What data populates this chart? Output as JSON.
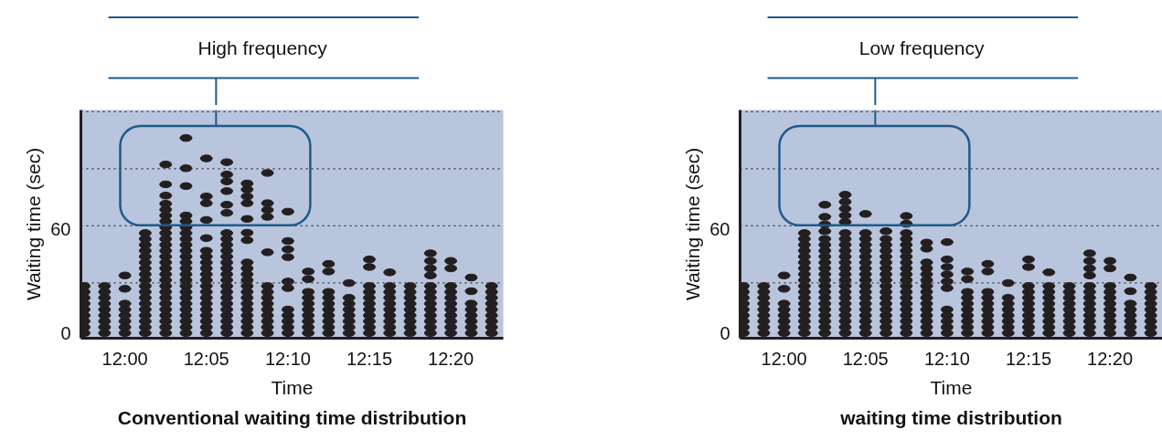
{
  "chart_data": [
    {
      "type": "scatter",
      "title": "Conventional waiting time distribution",
      "xlabel": "Time",
      "ylabel": "Waiting time (sec)",
      "annotations": [
        "High frequency"
      ],
      "xlim": [
        11.955,
        12.387
      ],
      "ylim": [
        -3,
        129
      ],
      "xticks": [
        {
          "value": 12.0,
          "label": "12:00"
        },
        {
          "value": 12.0833,
          "label": "12:05"
        },
        {
          "value": 12.1667,
          "label": "12:10"
        },
        {
          "value": 12.25,
          "label": "12:15"
        },
        {
          "value": 12.3333,
          "label": "12:20"
        }
      ],
      "yticks": [
        0,
        60
      ],
      "ref_lines": [
        {
          "axis": "y",
          "value": 29,
          "color": "#333333",
          "line_style": "dotted"
        },
        {
          "axis": "y",
          "value": 62,
          "color": "#333333",
          "line_style": "dotted"
        },
        {
          "axis": "y",
          "value": 95,
          "color": "#333333",
          "line_style": "dotted"
        },
        {
          "axis": "y",
          "value": 128,
          "color": "#333333",
          "line_style": "dotted"
        }
      ],
      "series": [
        {
          "color": "#231f20",
          "x": [
            11.9583,
            11.9583,
            11.9583,
            11.9583,
            11.9583,
            11.9583,
            11.9583,
            11.9583,
            11.9583
          ],
          "values": [
            0,
            3.4,
            6.8,
            10.2,
            13.6,
            17,
            20.4,
            23.8,
            27.2
          ]
        },
        {
          "color": "#231f20",
          "x": [
            11.9792,
            11.9792,
            11.9792,
            11.9792,
            11.9792,
            11.9792,
            11.9792,
            11.9792,
            11.9792
          ],
          "values": [
            0,
            3.4,
            6.8,
            10.2,
            13.6,
            17,
            20.4,
            23.8,
            27.2
          ]
        },
        {
          "color": "#231f20",
          "x": [
            12.0,
            12.0,
            12.0,
            12.0,
            12.0,
            12.0,
            12.0,
            12.0
          ],
          "values": [
            0,
            3.4,
            6.8,
            10.2,
            13.6,
            17,
            25.6,
            33.3
          ]
        },
        {
          "color": "#231f20",
          "x": [
            12.0208,
            12.0208,
            12.0208,
            12.0208,
            12.0208,
            12.0208,
            12.0208,
            12.0208,
            12.0208,
            12.0208,
            12.0208,
            12.0208,
            12.0208,
            12.0208,
            12.0208,
            12.0208,
            12.0208,
            12.0208
          ],
          "values": [
            0,
            3.4,
            6.8,
            10.2,
            13.6,
            17,
            20.4,
            23.8,
            27.2,
            30.6,
            34,
            37.4,
            40.8,
            44.2,
            47.6,
            51,
            54.4,
            57.8
          ]
        },
        {
          "color": "#231f20",
          "x": [
            12.0417,
            12.0417,
            12.0417,
            12.0417,
            12.0417,
            12.0417,
            12.0417,
            12.0417,
            12.0417,
            12.0417,
            12.0417,
            12.0417,
            12.0417,
            12.0417,
            12.0417,
            12.0417,
            12.0417,
            12.0417,
            12.0417,
            12.0417,
            12.0417,
            12.0417,
            12.0417,
            12.0417,
            12.0417,
            12.0417
          ],
          "values": [
            0,
            3.4,
            6.8,
            10.2,
            13.6,
            17,
            20.4,
            23.8,
            27.2,
            30.6,
            34,
            37.4,
            40.8,
            44.2,
            47.6,
            51,
            54.4,
            57.8,
            61.2,
            64.6,
            68,
            71.4,
            74.8,
            79.5,
            86,
            97.5
          ]
        },
        {
          "color": "#231f20",
          "x": [
            12.0625,
            12.0625,
            12.0625,
            12.0625,
            12.0625,
            12.0625,
            12.0625,
            12.0625,
            12.0625,
            12.0625,
            12.0625,
            12.0625,
            12.0625,
            12.0625,
            12.0625,
            12.0625,
            12.0625,
            12.0625,
            12.0625,
            12.0625,
            12.0625,
            12.0625,
            12.0625,
            12.0625
          ],
          "values": [
            0,
            3.4,
            6.8,
            10.2,
            13.6,
            17,
            20.4,
            23.8,
            27.2,
            30.6,
            34,
            37.4,
            40.8,
            44.2,
            47.6,
            51,
            54.4,
            57.8,
            61.2,
            64.6,
            68,
            85,
            95.3,
            112.8
          ]
        },
        {
          "color": "#231f20",
          "x": [
            12.0833,
            12.0833,
            12.0833,
            12.0833,
            12.0833,
            12.0833,
            12.0833,
            12.0833,
            12.0833,
            12.0833,
            12.0833,
            12.0833,
            12.0833,
            12.0833,
            12.0833,
            12.0833,
            12.0833,
            12.0833,
            12.0833,
            12.0833
          ],
          "values": [
            0,
            3.4,
            6.8,
            10.2,
            13.6,
            17,
            20.4,
            23.8,
            27.2,
            30.6,
            34,
            37.4,
            40.8,
            44.2,
            47.6,
            54.9,
            65.4,
            75.1,
            79,
            101
          ]
        },
        {
          "color": "#231f20",
          "x": [
            12.1042,
            12.1042,
            12.1042,
            12.1042,
            12.1042,
            12.1042,
            12.1042,
            12.1042,
            12.1042,
            12.1042,
            12.1042,
            12.1042,
            12.1042,
            12.1042,
            12.1042,
            12.1042,
            12.1042,
            12.1042,
            12.1042,
            12.1042,
            12.1042,
            12.1042,
            12.1042,
            12.1042
          ],
          "values": [
            0,
            3.4,
            6.8,
            10.2,
            13.6,
            17,
            20.4,
            23.8,
            27.2,
            30.6,
            34,
            37.4,
            40.8,
            44.2,
            47.6,
            51,
            54.4,
            57.8,
            69.5,
            74.2,
            82.1,
            87.7,
            91.7,
            98.8
          ]
        },
        {
          "color": "#231f20",
          "x": [
            12.125,
            12.125,
            12.125,
            12.125,
            12.125,
            12.125,
            12.125,
            12.125,
            12.125,
            12.125,
            12.125,
            12.125,
            12.125,
            12.125,
            12.125,
            12.125,
            12.125,
            12.125,
            12.125,
            12.125
          ],
          "values": [
            0,
            3.4,
            6.8,
            10.2,
            13.6,
            17,
            20.4,
            23.8,
            27.2,
            30.6,
            34,
            37.4,
            40.8,
            53.7,
            58,
            66,
            75.1,
            79,
            83,
            86.5
          ]
        },
        {
          "color": "#231f20",
          "x": [
            12.1458,
            12.1458,
            12.1458,
            12.1458,
            12.1458,
            12.1458,
            12.1458,
            12.1458,
            12.1458,
            12.1458,
            12.1458,
            12.1458,
            12.1458,
            12.1458
          ],
          "values": [
            0,
            3.4,
            6.8,
            10.2,
            13.6,
            17,
            20.4,
            23.8,
            27.2,
            46.7,
            67.2,
            71.2,
            75.1,
            92.6
          ]
        },
        {
          "color": "#231f20",
          "x": [
            12.1667,
            12.1667,
            12.1667,
            12.1667,
            12.1667,
            12.1667,
            12.1667,
            12.1667,
            12.1667,
            12.1667,
            12.1667
          ],
          "values": [
            0,
            3.4,
            6.8,
            10.2,
            13.6,
            26,
            29.8,
            43.9,
            48.4,
            53.2,
            70.2
          ]
        },
        {
          "color": "#231f20",
          "x": [
            12.1875,
            12.1875,
            12.1875,
            12.1875,
            12.1875,
            12.1875,
            12.1875,
            12.1875,
            12.1875,
            12.1875
          ],
          "values": [
            0,
            3.4,
            6.8,
            10.2,
            13.6,
            17,
            20.4,
            23.8,
            31.2,
            35.6
          ]
        },
        {
          "color": "#231f20",
          "x": [
            12.2083,
            12.2083,
            12.2083,
            12.2083,
            12.2083,
            12.2083,
            12.2083,
            12.2083,
            12.2083,
            12.2083
          ],
          "values": [
            0,
            3.4,
            6.8,
            10.2,
            13.6,
            17,
            20.4,
            23.8,
            35.6,
            40
          ]
        },
        {
          "color": "#231f20",
          "x": [
            12.2292,
            12.2292,
            12.2292,
            12.2292,
            12.2292,
            12.2292,
            12.2292,
            12.2292
          ],
          "values": [
            0,
            3.4,
            6.8,
            10.2,
            13.6,
            17,
            20.4,
            28.9
          ]
        },
        {
          "color": "#231f20",
          "x": [
            12.25,
            12.25,
            12.25,
            12.25,
            12.25,
            12.25,
            12.25,
            12.25,
            12.25,
            12.25,
            12.25
          ],
          "values": [
            0,
            3.4,
            6.8,
            10.2,
            13.6,
            17,
            20.4,
            23.8,
            27.2,
            38.2,
            42.6
          ]
        },
        {
          "color": "#231f20",
          "x": [
            12.2708,
            12.2708,
            12.2708,
            12.2708,
            12.2708,
            12.2708,
            12.2708,
            12.2708,
            12.2708,
            12.2708
          ],
          "values": [
            0,
            3.4,
            6.8,
            10.2,
            13.6,
            17,
            20.4,
            23.8,
            27.2,
            35.1
          ]
        },
        {
          "color": "#231f20",
          "x": [
            12.2917,
            12.2917,
            12.2917,
            12.2917,
            12.2917,
            12.2917,
            12.2917,
            12.2917,
            12.2917
          ],
          "values": [
            0,
            3.4,
            6.8,
            10.2,
            13.6,
            17,
            20.4,
            23.8,
            27.2
          ]
        },
        {
          "color": "#231f20",
          "x": [
            12.3125,
            12.3125,
            12.3125,
            12.3125,
            12.3125,
            12.3125,
            12.3125,
            12.3125,
            12.3125,
            12.3125,
            12.3125,
            12.3125,
            12.3125
          ],
          "values": [
            0,
            3.4,
            6.8,
            10.2,
            13.6,
            17,
            20.4,
            23.8,
            27.2,
            33.3,
            37.4,
            41.7,
            46.1
          ]
        },
        {
          "color": "#231f20",
          "x": [
            12.3333,
            12.3333,
            12.3333,
            12.3333,
            12.3333,
            12.3333,
            12.3333,
            12.3333,
            12.3333,
            12.3333,
            12.3333
          ],
          "values": [
            0,
            3.4,
            6.8,
            10.2,
            13.6,
            17,
            20.4,
            23.8,
            27.2,
            37.4,
            41.7
          ]
        },
        {
          "color": "#231f20",
          "x": [
            12.3542,
            12.3542,
            12.3542,
            12.3542,
            12.3542,
            12.3542,
            12.3542,
            12.3542
          ],
          "values": [
            0,
            3.4,
            6.8,
            10.2,
            13.6,
            17,
            24.2,
            32.1
          ]
        },
        {
          "color": "#231f20",
          "x": [
            12.375,
            12.375,
            12.375,
            12.375,
            12.375,
            12.375,
            12.375,
            12.375,
            12.375
          ],
          "values": [
            0,
            3.4,
            6.8,
            10.2,
            13.6,
            17,
            20.4,
            23.8,
            27.2
          ]
        }
      ]
    },
    {
      "type": "scatter",
      "title": "waiting time distribution",
      "xlabel": "Time",
      "ylabel": "Waiting time (sec)",
      "annotations": [
        "Low frequency"
      ],
      "xlim": [
        11.955,
        12.387
      ],
      "ylim": [
        -3,
        129
      ],
      "xticks": [
        {
          "value": 12.0,
          "label": "12:00"
        },
        {
          "value": 12.0833,
          "label": "12:05"
        },
        {
          "value": 12.1667,
          "label": "12:10"
        },
        {
          "value": 12.25,
          "label": "12:15"
        },
        {
          "value": 12.3333,
          "label": "12:20"
        }
      ],
      "yticks": [
        0,
        60
      ],
      "ref_lines": [
        {
          "axis": "y",
          "value": 29,
          "color": "#333333",
          "line_style": "dotted"
        },
        {
          "axis": "y",
          "value": 62,
          "color": "#333333",
          "line_style": "dotted"
        },
        {
          "axis": "y",
          "value": 95,
          "color": "#333333",
          "line_style": "dotted"
        },
        {
          "axis": "y",
          "value": 128,
          "color": "#333333",
          "line_style": "dotted"
        }
      ],
      "series": [
        {
          "color": "#231f20",
          "x": [
            11.9583,
            11.9583,
            11.9583,
            11.9583,
            11.9583,
            11.9583,
            11.9583,
            11.9583,
            11.9583
          ],
          "values": [
            0,
            3.4,
            6.8,
            10.2,
            13.6,
            17,
            20.4,
            23.8,
            27.2
          ]
        },
        {
          "color": "#231f20",
          "x": [
            11.9792,
            11.9792,
            11.9792,
            11.9792,
            11.9792,
            11.9792,
            11.9792,
            11.9792,
            11.9792
          ],
          "values": [
            0,
            3.4,
            6.8,
            10.2,
            13.6,
            17,
            20.4,
            23.8,
            27.2
          ]
        },
        {
          "color": "#231f20",
          "x": [
            12.0,
            12.0,
            12.0,
            12.0,
            12.0,
            12.0,
            12.0,
            12.0
          ],
          "values": [
            0,
            3.4,
            6.8,
            10.2,
            13.6,
            17,
            25.6,
            33.3
          ]
        },
        {
          "color": "#231f20",
          "x": [
            12.0208,
            12.0208,
            12.0208,
            12.0208,
            12.0208,
            12.0208,
            12.0208,
            12.0208,
            12.0208,
            12.0208,
            12.0208,
            12.0208,
            12.0208,
            12.0208,
            12.0208,
            12.0208,
            12.0208,
            12.0208
          ],
          "values": [
            0,
            3.4,
            6.8,
            10.2,
            13.6,
            17,
            20.4,
            23.8,
            27.2,
            30.6,
            34,
            37.4,
            40.8,
            44.2,
            47.6,
            51,
            54.4,
            57.8
          ]
        },
        {
          "color": "#231f20",
          "x": [
            12.0417,
            12.0417,
            12.0417,
            12.0417,
            12.0417,
            12.0417,
            12.0417,
            12.0417,
            12.0417,
            12.0417,
            12.0417,
            12.0417,
            12.0417,
            12.0417,
            12.0417,
            12.0417,
            12.0417,
            12.0417,
            12.0417,
            12.0417,
            12.0417
          ],
          "values": [
            0,
            3.4,
            6.8,
            10.2,
            13.6,
            17,
            20.4,
            23.8,
            27.2,
            30.6,
            34,
            37.4,
            40.8,
            44.2,
            47.6,
            51,
            54.4,
            58.9,
            62.8,
            67.2,
            74.2
          ]
        },
        {
          "color": "#231f20",
          "x": [
            12.0625,
            12.0625,
            12.0625,
            12.0625,
            12.0625,
            12.0625,
            12.0625,
            12.0625,
            12.0625,
            12.0625,
            12.0625,
            12.0625,
            12.0625,
            12.0625,
            12.0625,
            12.0625,
            12.0625,
            12.0625,
            12.0625,
            12.0625,
            12.0625,
            12.0625,
            12.0625
          ],
          "values": [
            0,
            3.4,
            6.8,
            10.2,
            13.6,
            17,
            20.4,
            23.8,
            27.2,
            30.6,
            34,
            37.4,
            40.8,
            44.2,
            47.6,
            51,
            54.4,
            57.8,
            64.2,
            68,
            71.9,
            75.9,
            80
          ]
        },
        {
          "color": "#231f20",
          "x": [
            12.0833,
            12.0833,
            12.0833,
            12.0833,
            12.0833,
            12.0833,
            12.0833,
            12.0833,
            12.0833,
            12.0833,
            12.0833,
            12.0833,
            12.0833,
            12.0833,
            12.0833,
            12.0833,
            12.0833,
            12.0833,
            12.0833
          ],
          "values": [
            0,
            3.4,
            6.8,
            10.2,
            13.6,
            17,
            20.4,
            23.8,
            27.2,
            30.6,
            34,
            37.4,
            40.8,
            44.2,
            47.6,
            51,
            54.4,
            57.8,
            68.9
          ]
        },
        {
          "color": "#231f20",
          "x": [
            12.1042,
            12.1042,
            12.1042,
            12.1042,
            12.1042,
            12.1042,
            12.1042,
            12.1042,
            12.1042,
            12.1042,
            12.1042,
            12.1042,
            12.1042,
            12.1042,
            12.1042,
            12.1042,
            12.1042,
            12.1042
          ],
          "values": [
            0,
            3.4,
            6.8,
            10.2,
            13.6,
            17,
            20.4,
            23.8,
            27.2,
            30.6,
            34,
            37.4,
            40.8,
            44.2,
            47.6,
            51,
            54.4,
            58.9
          ]
        },
        {
          "color": "#231f20",
          "x": [
            12.125,
            12.125,
            12.125,
            12.125,
            12.125,
            12.125,
            12.125,
            12.125,
            12.125,
            12.125,
            12.125,
            12.125,
            12.125,
            12.125,
            12.125,
            12.125,
            12.125,
            12.125,
            12.125,
            12.125
          ],
          "values": [
            0,
            3.4,
            6.8,
            10.2,
            13.6,
            17,
            20.4,
            23.8,
            27.2,
            30.6,
            34,
            37.4,
            40.8,
            44.2,
            47.6,
            51,
            54.4,
            57.8,
            63.2,
            67.7
          ]
        },
        {
          "color": "#231f20",
          "x": [
            12.1458,
            12.1458,
            12.1458,
            12.1458,
            12.1458,
            12.1458,
            12.1458,
            12.1458,
            12.1458,
            12.1458,
            12.1458,
            12.1458,
            12.1458,
            12.1458,
            12.1458
          ],
          "values": [
            0,
            3.4,
            6.8,
            10.2,
            13.6,
            17,
            20.4,
            23.8,
            27.2,
            30.6,
            34,
            37.4,
            40.8,
            48.8,
            52.3
          ]
        },
        {
          "color": "#231f20",
          "x": [
            12.1667,
            12.1667,
            12.1667,
            12.1667,
            12.1667,
            12.1667,
            12.1667,
            12.1667,
            12.1667,
            12.1667,
            12.1667
          ],
          "values": [
            0,
            3.4,
            6.8,
            10.2,
            13.6,
            26,
            29.8,
            33.9,
            38.2,
            42.6,
            52.6
          ]
        },
        {
          "color": "#231f20",
          "x": [
            12.1875,
            12.1875,
            12.1875,
            12.1875,
            12.1875,
            12.1875,
            12.1875,
            12.1875,
            12.1875,
            12.1875
          ],
          "values": [
            0,
            3.4,
            6.8,
            10.2,
            13.6,
            17,
            20.4,
            23.8,
            31.2,
            35.6
          ]
        },
        {
          "color": "#231f20",
          "x": [
            12.2083,
            12.2083,
            12.2083,
            12.2083,
            12.2083,
            12.2083,
            12.2083,
            12.2083,
            12.2083,
            12.2083
          ],
          "values": [
            0,
            3.4,
            6.8,
            10.2,
            13.6,
            17,
            20.4,
            23.8,
            35.6,
            40
          ]
        },
        {
          "color": "#231f20",
          "x": [
            12.2292,
            12.2292,
            12.2292,
            12.2292,
            12.2292,
            12.2292,
            12.2292,
            12.2292
          ],
          "values": [
            0,
            3.4,
            6.8,
            10.2,
            13.6,
            17,
            20.4,
            28.9
          ]
        },
        {
          "color": "#231f20",
          "x": [
            12.25,
            12.25,
            12.25,
            12.25,
            12.25,
            12.25,
            12.25,
            12.25,
            12.25,
            12.25,
            12.25
          ],
          "values": [
            0,
            3.4,
            6.8,
            10.2,
            13.6,
            17,
            20.4,
            23.8,
            27.2,
            38.2,
            42.6
          ]
        },
        {
          "color": "#231f20",
          "x": [
            12.2708,
            12.2708,
            12.2708,
            12.2708,
            12.2708,
            12.2708,
            12.2708,
            12.2708,
            12.2708,
            12.2708
          ],
          "values": [
            0,
            3.4,
            6.8,
            10.2,
            13.6,
            17,
            20.4,
            23.8,
            27.2,
            35.1
          ]
        },
        {
          "color": "#231f20",
          "x": [
            12.2917,
            12.2917,
            12.2917,
            12.2917,
            12.2917,
            12.2917,
            12.2917,
            12.2917,
            12.2917
          ],
          "values": [
            0,
            3.4,
            6.8,
            10.2,
            13.6,
            17,
            20.4,
            23.8,
            27.2
          ]
        },
        {
          "color": "#231f20",
          "x": [
            12.3125,
            12.3125,
            12.3125,
            12.3125,
            12.3125,
            12.3125,
            12.3125,
            12.3125,
            12.3125,
            12.3125,
            12.3125,
            12.3125,
            12.3125
          ],
          "values": [
            0,
            3.4,
            6.8,
            10.2,
            13.6,
            17,
            20.4,
            23.8,
            27.2,
            33.3,
            37.4,
            41.7,
            46.1
          ]
        },
        {
          "color": "#231f20",
          "x": [
            12.3333,
            12.3333,
            12.3333,
            12.3333,
            12.3333,
            12.3333,
            12.3333,
            12.3333,
            12.3333,
            12.3333,
            12.3333
          ],
          "values": [
            0,
            3.4,
            6.8,
            10.2,
            13.6,
            17,
            20.4,
            23.8,
            27.2,
            37.4,
            41.7
          ]
        },
        {
          "color": "#231f20",
          "x": [
            12.3542,
            12.3542,
            12.3542,
            12.3542,
            12.3542,
            12.3542,
            12.3542,
            12.3542
          ],
          "values": [
            0,
            3.4,
            6.8,
            10.2,
            13.6,
            17,
            24.2,
            32.1
          ]
        },
        {
          "color": "#231f20",
          "x": [
            12.375,
            12.375,
            12.375,
            12.375,
            12.375,
            12.375,
            12.375,
            12.375,
            12.375
          ],
          "values": [
            0,
            3.4,
            6.8,
            10.2,
            13.6,
            17,
            20.4,
            23.8,
            27.2
          ]
        }
      ]
    }
  ]
}
